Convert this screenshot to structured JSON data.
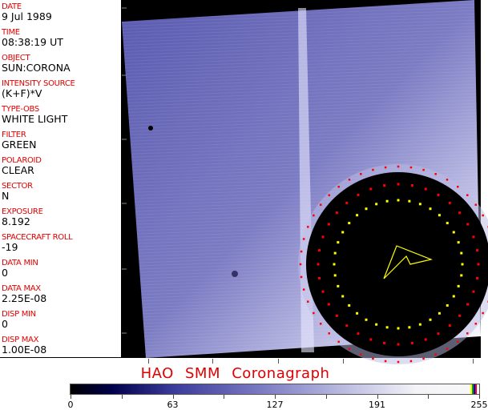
{
  "metadata": [
    {
      "label": "DATE",
      "value": "9 Jul 1989"
    },
    {
      "label": "TIME",
      "value": "08:38:19 UT"
    },
    {
      "label": "OBJECT",
      "value": "SUN:CORONA"
    },
    {
      "label": "INTENSITY SOURCE",
      "value": "(K+F)*V"
    },
    {
      "label": "TYPE-OBS",
      "value": "WHITE LIGHT"
    },
    {
      "label": "FILTER",
      "value": "GREEN"
    },
    {
      "label": "POLAROID",
      "value": "CLEAR"
    },
    {
      "label": "SECTOR",
      "value": "N"
    },
    {
      "label": "EXPOSURE",
      "value": "8.192"
    },
    {
      "label": "SPACECRAFT ROLL",
      "value": "-19"
    },
    {
      "label": "DATA MIN",
      "value": "0"
    },
    {
      "label": "DATA MAX",
      "value": "2.25E-08"
    },
    {
      "label": "DISP MIN",
      "value": "0"
    },
    {
      "label": "DISP MAX",
      "value": "1.00E-08"
    }
  ],
  "title": "HAO  SMM Coronagraph",
  "colorbar": {
    "ticks": [
      "0",
      "63",
      "127",
      "191",
      "255"
    ],
    "colormap": "black-blue-white",
    "overflow_colors": [
      "#ffff00",
      "#00c000",
      "#0000ff",
      "#ff0000"
    ]
  },
  "colors": {
    "label": "#e00000",
    "disk": "#000000",
    "overlay_yellow": "#ffff00",
    "overlay_red": "#ff0000"
  }
}
